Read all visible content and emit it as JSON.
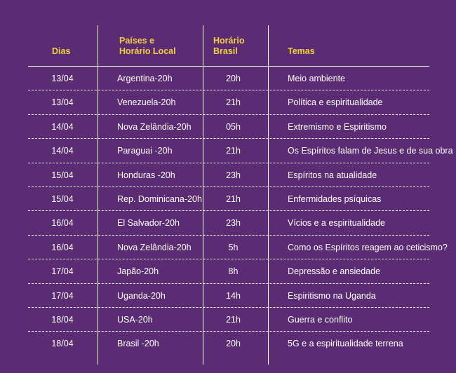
{
  "header": {
    "dias": "Dias",
    "paises_line1": "Países e",
    "paises_line2": "Horário Local",
    "horario_line1": "Horário",
    "horario_line2": "Brasil",
    "temas": "Temas"
  },
  "rows": [
    {
      "dia": "13/04",
      "pais": "Argentina-20h",
      "horario": "20h",
      "tema": "Meio ambiente"
    },
    {
      "dia": "13/04",
      "pais": "Venezuela-20h",
      "horario": "21h",
      "tema": "Política e espiritualidade"
    },
    {
      "dia": "14/04",
      "pais": "Nova Zelândia-20h",
      "horario": "05h",
      "tema": "Extremismo e Espiritismo"
    },
    {
      "dia": "14/04",
      "pais": "Paraguai -20h",
      "horario": "21h",
      "tema": "Os Espíritos falam de Jesus e de sua obra"
    },
    {
      "dia": "15/04",
      "pais": "Honduras -20h",
      "horario": "23h",
      "tema": "Espíritos na atualidade"
    },
    {
      "dia": "15/04",
      "pais": "Rep. Dominicana-20h",
      "horario": "21h",
      "tema": "Enfermidades psíquicas"
    },
    {
      "dia": "16/04",
      "pais": "El Salvador-20h",
      "horario": "23h",
      "tema": "Vícios e a espiritualidade"
    },
    {
      "dia": "16/04",
      "pais": "Nova Zelândia-20h",
      "horario": "5h",
      "tema": "Como os Espíritos reagem ao ceticismo?"
    },
    {
      "dia": "17/04",
      "pais": "Japão-20h",
      "horario": "8h",
      "tema": "Depressão e ansiedade"
    },
    {
      "dia": "17/04",
      "pais": "Uganda-20h",
      "horario": "14h",
      "tema": "Espiritismo na Uganda"
    },
    {
      "dia": "18/04",
      "pais": "USA-20h",
      "horario": "21h",
      "tema": "Guerra e conflito"
    },
    {
      "dia": "18/04",
      "pais": "Brasil -20h",
      "horario": "20h",
      "tema": "5G e a espiritualidade terrena"
    }
  ],
  "colors": {
    "background": "#5b2c73",
    "header_text": "#f3d13e",
    "body_text": "#ffffff"
  }
}
